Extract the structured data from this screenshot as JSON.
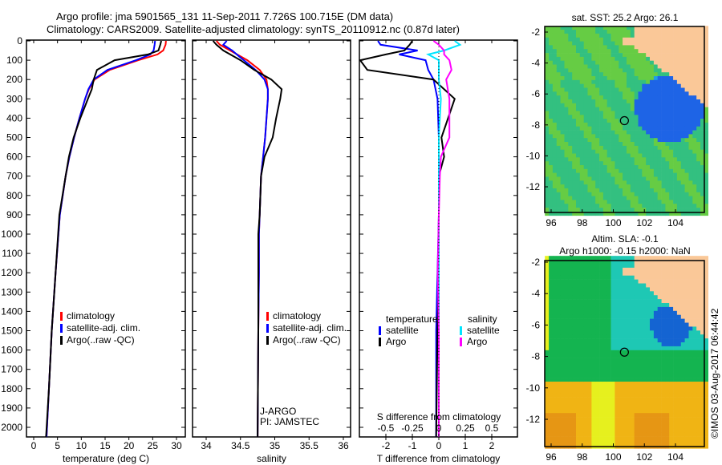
{
  "title_line1": "Argo profile: jma 5901565_131 11-Sep-2011 7.726S 100.715E (DM data)",
  "title_line2": "Climatology: CARS2009. Satellite-adjusted climatology: synTS_20110912.nc (0.87d later)",
  "colors": {
    "climatology": "#ff0000",
    "satellite": "#0000ff",
    "argo": "#000000",
    "sal_satellite": "#00e5ff",
    "sal_argo": "#ff00ff",
    "land": "#fac898"
  },
  "watermark": "©IMOS 03-Aug-2017 06:44:42",
  "chart_data": [
    {
      "type": "line",
      "xlabel": "temperature (deg C)",
      "ylabel": "",
      "xlim": [
        -1.5,
        31
      ],
      "ylim": [
        2050,
        0
      ],
      "xticks": [
        "0",
        "5",
        "10",
        "15",
        "20",
        "25",
        "30"
      ],
      "yticks": [
        "0",
        "100",
        "200",
        "300",
        "400",
        "500",
        "600",
        "700",
        "800",
        "900",
        "1000",
        "1100",
        "1200",
        "1300",
        "1400",
        "1500",
        "1600",
        "1700",
        "1800",
        "1900",
        "2000"
      ],
      "depth": [
        0,
        20,
        50,
        70,
        100,
        150,
        200,
        250,
        300,
        400,
        500,
        600,
        700,
        900,
        1200,
        1500,
        1800,
        2050
      ],
      "series": [
        {
          "name": "climatology",
          "values": [
            27.8,
            27.7,
            27.2,
            26,
            22,
            16,
            12.8,
            11.6,
            10.8,
            9.6,
            8.5,
            7.5,
            6.7,
            5.5,
            4.6,
            3.8,
            3.2,
            2.7
          ]
        },
        {
          "name": "satellite-adj. clim.",
          "values": [
            25.5,
            25.4,
            25.2,
            24.5,
            21.5,
            15.5,
            12.6,
            11.5,
            10.8,
            9.6,
            8.5,
            7.5,
            6.7,
            5.5,
            4.6,
            3.8,
            3.2,
            2.7
          ]
        },
        {
          "name": "Argo(..raw -QC)",
          "values": [
            26.8,
            26.6,
            26.2,
            24,
            17,
            13.3,
            12.6,
            12.2,
            11.4,
            9.8,
            8.4,
            7.4,
            6.7,
            5.4,
            4.6,
            3.8,
            3.2,
            2.6
          ]
        }
      ],
      "legend": [
        "climatology",
        "satellite-adj. clim.",
        "Argo(..raw -QC)"
      ]
    },
    {
      "type": "line",
      "xlabel": "salinity",
      "xlim": [
        33.8,
        36.1
      ],
      "ylim": [
        2050,
        0
      ],
      "xticks": [
        "34",
        "34.5",
        "35",
        "35.5",
        "36"
      ],
      "depth": [
        0,
        20,
        50,
        80,
        100,
        150,
        200,
        250,
        300,
        400,
        500,
        600,
        700,
        900,
        1000,
        1200,
        1500,
        2050
      ],
      "series": [
        {
          "name": "climatology",
          "values": [
            34.15,
            34.2,
            34.35,
            34.5,
            34.6,
            34.78,
            34.88,
            34.9,
            34.9,
            34.88,
            34.86,
            34.83,
            34.8,
            34.78,
            34.77,
            34.77,
            34.76,
            34.75
          ]
        },
        {
          "name": "satellite-adj. clim.",
          "values": [
            34.3,
            34.25,
            34.38,
            34.48,
            34.55,
            34.72,
            34.85,
            34.9,
            34.9,
            34.88,
            34.86,
            34.83,
            34.8,
            34.78,
            34.77,
            34.77,
            34.76,
            34.75
          ]
        },
        {
          "name": "Argo(..raw -QC)",
          "values": [
            34.1,
            34.15,
            34.25,
            34.4,
            34.5,
            34.7,
            34.95,
            35.1,
            35.08,
            35.02,
            34.97,
            34.85,
            34.8,
            34.78,
            34.76,
            34.76,
            34.76,
            34.75
          ]
        }
      ],
      "legend": [
        "climatology",
        "satellite-adj. clim.",
        "Argo(..raw -QC)"
      ],
      "annotation_line1": "J-ARGO",
      "annotation_line2": "PI: JAMSTEC"
    },
    {
      "type": "line",
      "xlabel": "T difference from climatology",
      "x2label": "S difference from climatology",
      "xlim": [
        -3,
        3
      ],
      "ylim": [
        2050,
        0
      ],
      "xticks": [
        "-2",
        "-1",
        "0",
        "1",
        "2"
      ],
      "x2ticks": [
        "-0.5",
        "-0.25",
        "0",
        "0.25",
        "0.5"
      ],
      "depth": [
        0,
        20,
        50,
        70,
        100,
        150,
        200,
        300,
        500,
        600,
        700,
        900,
        1200,
        1500,
        2050
      ],
      "series": [
        {
          "name": "T satellite",
          "values": [
            -2.3,
            -2.2,
            -0.8,
            -1.5,
            -0.5,
            -0.4,
            -0.2,
            -0.05,
            0,
            0,
            0,
            0,
            -0.05,
            -0.1,
            -0.1
          ]
        },
        {
          "name": "T Argo",
          "values": [
            -1,
            -1.1,
            -1.3,
            -2,
            -5,
            -2.7,
            -0.2,
            0.6,
            0.1,
            0.2,
            0,
            0,
            0,
            -0.05,
            -0.1
          ]
        },
        {
          "name": "S satellite",
          "values": [
            0.15,
            0.2,
            0.05,
            -0.1,
            0,
            0,
            0,
            0.02,
            0,
            0,
            0,
            0,
            0,
            0,
            0
          ]
        },
        {
          "name": "S Argo",
          "values": [
            -0.05,
            0,
            0.05,
            0.05,
            0.1,
            0.12,
            0.07,
            0.1,
            0.1,
            0.02,
            0.01,
            0,
            -0.01,
            0,
            0
          ]
        }
      ],
      "legend_temperature_title": "temperature",
      "legend_salinity_title": "salinity",
      "legend": [
        "satellite",
        "Argo",
        "satellite",
        "Argo"
      ]
    },
    {
      "type": "heatmap",
      "title": "sat. SST: 25.2 Argo: 26.1",
      "xticks": [
        "96",
        "98",
        "100",
        "102",
        "104"
      ],
      "yticks": [
        "-2",
        "-4",
        "-6",
        "-8",
        "-10",
        "-12"
      ],
      "xlim": [
        95.6,
        105.9
      ],
      "ylim": [
        -13.3,
        -1.6
      ],
      "marker": [
        100.715,
        -7.726
      ]
    },
    {
      "type": "heatmap",
      "title_line1": "Altim. SLA: -0.1",
      "title_line2": "Argo h1000: -0.15 h2000: NaN",
      "xticks": [
        "96",
        "98",
        "100",
        "102",
        "104"
      ],
      "yticks": [
        "-2",
        "-4",
        "-6",
        "-8",
        "-10",
        "-12"
      ],
      "xlim": [
        95.6,
        105.9
      ],
      "ylim": [
        -13.7,
        -1.6
      ],
      "marker": [
        100.715,
        -7.726
      ]
    }
  ]
}
